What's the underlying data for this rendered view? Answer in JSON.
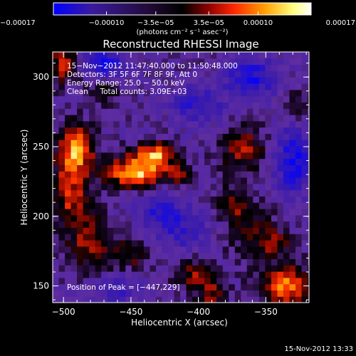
{
  "chart_data": {
    "type": "heatmap",
    "title": "Reconstructed RHESSI Image",
    "xlabel": "Heliocentric X (arcsec)",
    "ylabel": "Heliocentric Y (arcsec)",
    "xlim": [
      -508,
      -318
    ],
    "ylim": [
      138,
      318
    ],
    "xticks": [
      -500,
      -450,
      -400,
      -350
    ],
    "xtick_labels": [
      "−500",
      "−450",
      "−400",
      "−350"
    ],
    "yticks": [
      150,
      200,
      250,
      300
    ],
    "ytick_labels": [
      "150",
      "200",
      "250",
      "300"
    ],
    "colorbar": {
      "range": [
        -0.00017,
        0.00017
      ],
      "ticks": [
        -0.00017,
        -0.0001,
        -3.5e-05,
        3.5e-05,
        0.0001,
        0.00017
      ],
      "tick_labels": [
        "−0.00017",
        "−0.00010",
        "−3.5e−05",
        "3.5e−05",
        "0.00010",
        "0.00017"
      ],
      "unit_label": "(photons cm⁻² s⁻¹ asec⁻²)",
      "colors": [
        "#0000ff",
        "#3a1b9e",
        "#220a38",
        "#000000",
        "#8a0000",
        "#ff2600",
        "#ffa000",
        "#ffff80",
        "#ffffff"
      ]
    },
    "annotations": [
      "15−Nov−2012 11:47:40.000 to 11:50:48.000",
      "Detectors: 3F 5F 6F 7F 8F 9F, Att 0",
      "Energy Range: 25.0 − 50.0 keV",
      "Clean     Total counts: 3.09E+03"
    ],
    "peak_label": "Position of Peak = [−447,229]",
    "peak": [
      -447,
      229
    ],
    "hot_regions": [
      {
        "x": -447,
        "y": 232,
        "sx": 15,
        "sy": 8,
        "amp": 1.05
      },
      {
        "x": -432,
        "y": 245,
        "sx": 10,
        "sy": 6,
        "amp": 0.85
      },
      {
        "x": -490,
        "y": 250,
        "sx": 9,
        "sy": 12,
        "amp": 0.85
      },
      {
        "x": -495,
        "y": 218,
        "sx": 10,
        "sy": 20,
        "amp": 0.65
      },
      {
        "x": -500,
        "y": 310,
        "sx": 8,
        "sy": 10,
        "amp": 0.65
      },
      {
        "x": -470,
        "y": 290,
        "sx": 8,
        "sy": 6,
        "amp": 0.45
      },
      {
        "x": -367,
        "y": 248,
        "sx": 13,
        "sy": 12,
        "amp": 0.55
      },
      {
        "x": -375,
        "y": 210,
        "sx": 9,
        "sy": 8,
        "amp": 0.5
      },
      {
        "x": -415,
        "y": 230,
        "sx": 7,
        "sy": 6,
        "amp": 0.4
      },
      {
        "x": -360,
        "y": 190,
        "sx": 14,
        "sy": 12,
        "amp": 0.45
      },
      {
        "x": -478,
        "y": 180,
        "sx": 12,
        "sy": 14,
        "amp": 0.55
      },
      {
        "x": -450,
        "y": 172,
        "sx": 10,
        "sy": 8,
        "amp": 0.4
      },
      {
        "x": -405,
        "y": 160,
        "sx": 10,
        "sy": 8,
        "amp": 0.5
      },
      {
        "x": -390,
        "y": 145,
        "sx": 8,
        "sy": 8,
        "amp": 0.55
      },
      {
        "x": -335,
        "y": 150,
        "sx": 14,
        "sy": 10,
        "amp": 0.9
      },
      {
        "x": -343,
        "y": 180,
        "sx": 8,
        "sy": 6,
        "amp": 0.45
      },
      {
        "x": -325,
        "y": 280,
        "sx": 6,
        "sy": 10,
        "amp": 0.35
      }
    ],
    "cold_regions": [
      {
        "x": -470,
        "y": 310,
        "sx": 12,
        "sy": 8,
        "amp": 0.6
      },
      {
        "x": -360,
        "y": 300,
        "sx": 14,
        "sy": 10,
        "amp": 0.6
      },
      {
        "x": -400,
        "y": 280,
        "sx": 14,
        "sy": 10,
        "amp": 0.5
      },
      {
        "x": -330,
        "y": 240,
        "sx": 10,
        "sy": 18,
        "amp": 0.65
      },
      {
        "x": -430,
        "y": 205,
        "sx": 12,
        "sy": 10,
        "amp": 0.45
      },
      {
        "x": -410,
        "y": 190,
        "sx": 14,
        "sy": 12,
        "amp": 0.4
      },
      {
        "x": -460,
        "y": 148,
        "sx": 12,
        "sy": 8,
        "amp": 0.4
      }
    ]
  },
  "footer": {
    "timestamp": "15-Nov-2012 13:33"
  }
}
